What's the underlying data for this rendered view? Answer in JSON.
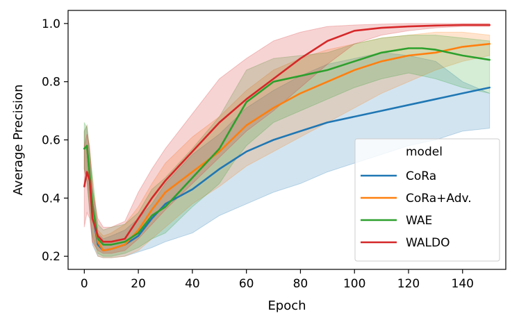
{
  "chart_data": {
    "type": "line",
    "title": "",
    "xlabel": "Epoch",
    "ylabel": "Average Precision",
    "xlim": [
      -6,
      156
    ],
    "ylim": [
      0.155,
      1.045
    ],
    "xticks": [
      0,
      20,
      40,
      60,
      80,
      100,
      120,
      140
    ],
    "xtick_labels": [
      "0",
      "20",
      "40",
      "60",
      "80",
      "100",
      "120",
      "140"
    ],
    "yticks": [
      0.2,
      0.4,
      0.6,
      0.8,
      1.0
    ],
    "ytick_labels": [
      "0.2",
      "0.4",
      "0.6",
      "0.8",
      "1.0"
    ],
    "grid": false,
    "legend": {
      "title": "model",
      "placement": "lower-right"
    },
    "series": [
      {
        "name": "CoRa",
        "color": "#1f77b4",
        "x": [
          0,
          1,
          3,
          5,
          7,
          10,
          15,
          20,
          25,
          30,
          40,
          50,
          60,
          70,
          80,
          90,
          100,
          110,
          120,
          130,
          140,
          150
        ],
        "y": [
          0.57,
          0.58,
          0.35,
          0.24,
          0.22,
          0.225,
          0.24,
          0.27,
          0.33,
          0.38,
          0.43,
          0.5,
          0.56,
          0.6,
          0.63,
          0.66,
          0.68,
          0.7,
          0.72,
          0.74,
          0.76,
          0.78
        ],
        "lower": [
          0.5,
          0.46,
          0.24,
          0.2,
          0.195,
          0.195,
          0.2,
          0.215,
          0.23,
          0.25,
          0.28,
          0.34,
          0.38,
          0.42,
          0.45,
          0.49,
          0.52,
          0.55,
          0.58,
          0.6,
          0.63,
          0.64
        ],
        "upper": [
          0.63,
          0.65,
          0.44,
          0.28,
          0.26,
          0.27,
          0.29,
          0.33,
          0.38,
          0.45,
          0.55,
          0.62,
          0.71,
          0.77,
          0.82,
          0.86,
          0.88,
          0.9,
          0.89,
          0.87,
          0.8,
          0.76
        ]
      },
      {
        "name": "CoRa+Adv.",
        "color": "#ff7f0e",
        "x": [
          0,
          1,
          3,
          5,
          7,
          10,
          15,
          20,
          25,
          30,
          40,
          50,
          60,
          70,
          80,
          90,
          100,
          110,
          120,
          130,
          140,
          150
        ],
        "y": [
          0.57,
          0.58,
          0.36,
          0.25,
          0.22,
          0.225,
          0.24,
          0.29,
          0.36,
          0.42,
          0.49,
          0.56,
          0.65,
          0.71,
          0.76,
          0.8,
          0.84,
          0.87,
          0.89,
          0.9,
          0.92,
          0.93
        ],
        "lower": [
          0.5,
          0.46,
          0.25,
          0.2,
          0.195,
          0.195,
          0.2,
          0.22,
          0.26,
          0.3,
          0.38,
          0.44,
          0.51,
          0.56,
          0.61,
          0.66,
          0.71,
          0.76,
          0.8,
          0.84,
          0.87,
          0.89
        ],
        "upper": [
          0.63,
          0.65,
          0.46,
          0.29,
          0.27,
          0.28,
          0.31,
          0.37,
          0.45,
          0.52,
          0.61,
          0.68,
          0.77,
          0.84,
          0.88,
          0.91,
          0.93,
          0.95,
          0.96,
          0.97,
          0.97,
          0.96
        ]
      },
      {
        "name": "WAE",
        "color": "#2ca02c",
        "x": [
          0,
          1,
          3,
          5,
          7,
          10,
          15,
          20,
          25,
          30,
          40,
          50,
          55,
          60,
          70,
          80,
          90,
          100,
          110,
          120,
          125,
          130,
          140,
          150
        ],
        "y": [
          0.57,
          0.58,
          0.38,
          0.26,
          0.24,
          0.24,
          0.25,
          0.28,
          0.34,
          0.37,
          0.47,
          0.57,
          0.65,
          0.73,
          0.8,
          0.82,
          0.84,
          0.87,
          0.9,
          0.915,
          0.915,
          0.91,
          0.89,
          0.875
        ],
        "lower": [
          0.5,
          0.46,
          0.27,
          0.21,
          0.2,
          0.2,
          0.21,
          0.23,
          0.26,
          0.28,
          0.37,
          0.45,
          0.52,
          0.58,
          0.66,
          0.7,
          0.74,
          0.78,
          0.81,
          0.83,
          0.82,
          0.81,
          0.78,
          0.76
        ],
        "upper": [
          0.66,
          0.64,
          0.48,
          0.31,
          0.29,
          0.3,
          0.31,
          0.35,
          0.43,
          0.47,
          0.57,
          0.68,
          0.76,
          0.84,
          0.88,
          0.89,
          0.9,
          0.93,
          0.95,
          0.96,
          0.96,
          0.96,
          0.95,
          0.94
        ]
      },
      {
        "name": "WALDO",
        "color": "#d62728",
        "x": [
          0,
          1,
          2,
          3,
          5,
          7,
          10,
          15,
          20,
          25,
          30,
          40,
          50,
          60,
          70,
          80,
          90,
          100,
          110,
          120,
          130,
          140,
          150
        ],
        "y": [
          0.44,
          0.49,
          0.46,
          0.33,
          0.27,
          0.25,
          0.25,
          0.26,
          0.33,
          0.4,
          0.46,
          0.56,
          0.66,
          0.74,
          0.81,
          0.88,
          0.94,
          0.975,
          0.985,
          0.99,
          0.993,
          0.995,
          0.995
        ],
        "lower": [
          0.3,
          0.35,
          0.33,
          0.25,
          0.22,
          0.21,
          0.21,
          0.22,
          0.26,
          0.31,
          0.36,
          0.45,
          0.54,
          0.63,
          0.7,
          0.78,
          0.86,
          0.93,
          0.96,
          0.975,
          0.985,
          0.99,
          0.99
        ],
        "upper": [
          0.58,
          0.62,
          0.58,
          0.43,
          0.33,
          0.3,
          0.3,
          0.32,
          0.42,
          0.5,
          0.57,
          0.69,
          0.81,
          0.88,
          0.94,
          0.97,
          0.99,
          0.995,
          0.998,
          1.0,
          1.0,
          1.0,
          1.0
        ]
      }
    ]
  }
}
